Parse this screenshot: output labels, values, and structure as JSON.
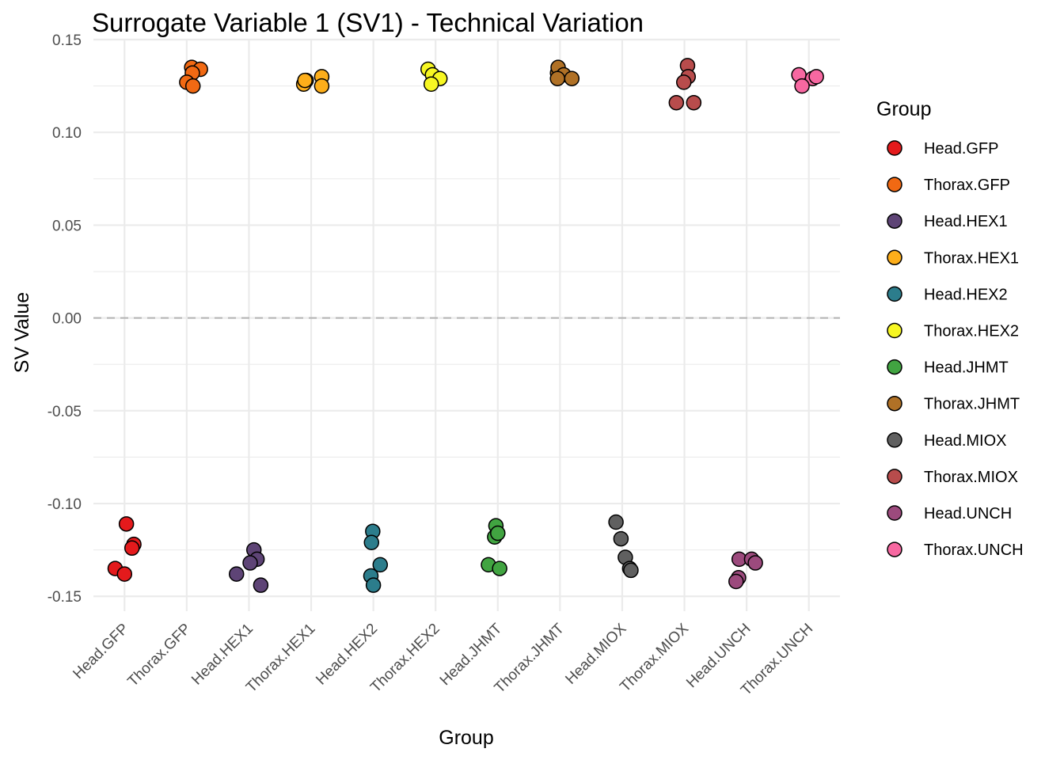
{
  "chart_data": {
    "type": "scatter",
    "title": "Surrogate Variable 1 (SV1) - Technical Variation",
    "xlabel": "Group",
    "ylabel": "SV Value",
    "ylim": [
      -0.158,
      0.15
    ],
    "yticks": [
      -0.15,
      -0.1,
      -0.05,
      0.0,
      0.05,
      0.1,
      0.15
    ],
    "ytick_labels": [
      "-0.15",
      "-0.10",
      "-0.05",
      "0.00",
      "0.05",
      "0.10",
      "0.15"
    ],
    "reference_line": {
      "y": 0.0,
      "style": "dashed"
    },
    "grid": true,
    "legend": {
      "title": "Group",
      "placement": "right"
    },
    "categories": [
      "Head.GFP",
      "Thorax.GFP",
      "Head.HEX1",
      "Thorax.HEX1",
      "Head.HEX2",
      "Thorax.HEX2",
      "Head.JHMT",
      "Thorax.JHMT",
      "Head.MIOX",
      "Thorax.MIOX",
      "Head.UNCH",
      "Thorax.UNCH"
    ],
    "series": [
      {
        "name": "Head.GFP",
        "color": "#e41a1c",
        "points": [
          [
            0.03,
            -0.111
          ],
          [
            0.15,
            -0.122
          ],
          [
            0.12,
            -0.124
          ],
          [
            -0.15,
            -0.135
          ],
          [
            0.0,
            -0.138
          ]
        ]
      },
      {
        "name": "Thorax.GFP",
        "color": "#f16913",
        "points": [
          [
            0.08,
            0.135
          ],
          [
            0.22,
            0.134
          ],
          [
            0.09,
            0.132
          ],
          [
            0.0,
            0.127
          ],
          [
            0.1,
            0.125
          ]
        ]
      },
      {
        "name": "Head.HEX1",
        "color": "#5e4476",
        "points": [
          [
            0.08,
            -0.125
          ],
          [
            0.13,
            -0.13
          ],
          [
            0.02,
            -0.132
          ],
          [
            -0.2,
            -0.138
          ],
          [
            0.19,
            -0.144
          ]
        ]
      },
      {
        "name": "Thorax.HEX1",
        "color": "#fdae1a",
        "points": [
          [
            -0.08,
            0.128
          ],
          [
            -0.12,
            0.126
          ],
          [
            -0.1,
            0.128
          ],
          [
            0.17,
            0.13
          ],
          [
            0.17,
            0.125
          ]
        ]
      },
      {
        "name": "Head.HEX2",
        "color": "#2c7d8c",
        "points": [
          [
            -0.01,
            -0.115
          ],
          [
            -0.03,
            -0.121
          ],
          [
            0.11,
            -0.133
          ],
          [
            -0.04,
            -0.139
          ],
          [
            0.0,
            -0.144
          ]
        ]
      },
      {
        "name": "Thorax.HEX2",
        "color": "#f7f722",
        "points": [
          [
            -0.12,
            0.134
          ],
          [
            -0.05,
            0.131
          ],
          [
            0.07,
            0.129
          ],
          [
            -0.07,
            0.126
          ]
        ]
      },
      {
        "name": "Head.JHMT",
        "color": "#41a441",
        "points": [
          [
            -0.03,
            -0.112
          ],
          [
            -0.05,
            -0.118
          ],
          [
            0.0,
            -0.116
          ],
          [
            -0.15,
            -0.133
          ],
          [
            0.03,
            -0.135
          ]
        ]
      },
      {
        "name": "Thorax.JHMT",
        "color": "#b07126",
        "points": [
          [
            -0.04,
            0.132
          ],
          [
            -0.03,
            0.135
          ],
          [
            0.06,
            0.131
          ],
          [
            0.19,
            0.129
          ],
          [
            -0.04,
            0.129
          ]
        ]
      },
      {
        "name": "Head.MIOX",
        "color": "#606060",
        "points": [
          [
            -0.1,
            -0.11
          ],
          [
            -0.02,
            -0.119
          ],
          [
            0.05,
            -0.129
          ],
          [
            0.12,
            -0.135
          ],
          [
            0.14,
            -0.136
          ]
        ]
      },
      {
        "name": "Thorax.MIOX",
        "color": "#b84c4c",
        "points": [
          [
            0.05,
            0.136
          ],
          [
            0.06,
            0.13
          ],
          [
            -0.01,
            0.127
          ],
          [
            -0.13,
            0.116
          ],
          [
            0.15,
            0.116
          ]
        ]
      },
      {
        "name": "Head.UNCH",
        "color": "#9c4a7d",
        "points": [
          [
            -0.12,
            -0.13
          ],
          [
            0.08,
            -0.13
          ],
          [
            0.14,
            -0.132
          ],
          [
            -0.13,
            -0.14
          ],
          [
            -0.17,
            -0.142
          ]
        ]
      },
      {
        "name": "Thorax.UNCH",
        "color": "#f768a1",
        "points": [
          [
            -0.16,
            0.131
          ],
          [
            0.06,
            0.129
          ],
          [
            0.12,
            0.13
          ],
          [
            -0.11,
            0.125
          ]
        ]
      }
    ]
  }
}
